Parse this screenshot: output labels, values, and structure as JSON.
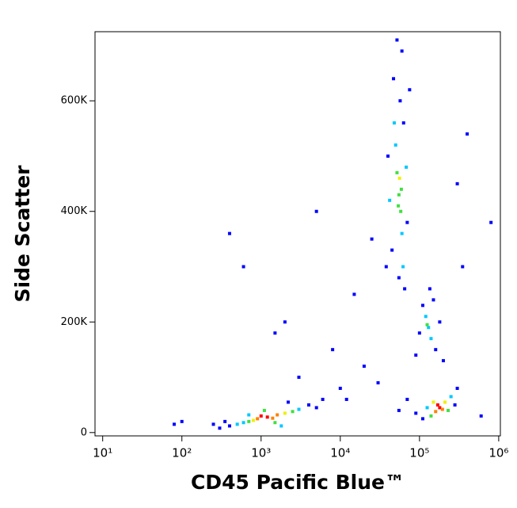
{
  "chart_data": {
    "type": "scatter",
    "xlabel": "CD45 Pacific Blue™",
    "ylabel": "Side Scatter",
    "xscale": "log",
    "xlim": [
      8,
      1050000
    ],
    "ylim": [
      -6000,
      725000
    ],
    "xticks": [
      {
        "value": 10,
        "label": "10¹"
      },
      {
        "value": 100,
        "label": "10²"
      },
      {
        "value": 1000,
        "label": "10³"
      },
      {
        "value": 10000,
        "label": "10⁴"
      },
      {
        "value": 100000,
        "label": "10⁵"
      },
      {
        "value": 1000000,
        "label": "10⁶"
      }
    ],
    "yticks": [
      0,
      {
        "value": 200000,
        "label": "200K"
      },
      {
        "value": 400000,
        "label": "400K"
      },
      {
        "value": 600000,
        "label": "600K"
      }
    ],
    "x": [
      1200,
      1000,
      1400,
      900,
      1600,
      800,
      2000,
      700,
      2500,
      600,
      3000,
      500,
      1100,
      1500,
      400,
      4000,
      350,
      5000,
      300,
      2200,
      1800,
      700,
      6000,
      250,
      55000,
      58000,
      52000,
      60000,
      50000,
      62000,
      48000,
      57000,
      45000,
      65000,
      47000,
      60000,
      68000,
      42000,
      70000,
      40000,
      55000,
      63000,
      38000,
      75000,
      52000,
      56000,
      54000,
      59000,
      130000,
      120000,
      140000,
      110000,
      160000,
      100000,
      150000,
      180000,
      90000,
      125000,
      135000,
      200000,
      180000,
      170000,
      195000,
      160000,
      210000,
      150000,
      230000,
      140000,
      250000,
      125000,
      280000,
      110000,
      300000,
      90000,
      70000,
      55000,
      2000,
      5000,
      8000,
      3000,
      15000,
      20000,
      10000,
      400,
      600,
      1500,
      25000,
      12000,
      100,
      80,
      350000,
      400000,
      300000,
      600000,
      800000,
      30000
    ],
    "values": [
      28000,
      30000,
      26000,
      25000,
      32000,
      22000,
      35000,
      20000,
      38000,
      18000,
      42000,
      15000,
      40000,
      18000,
      12000,
      50000,
      20000,
      45000,
      8000,
      55000,
      12000,
      32000,
      60000,
      15000,
      430000,
      400000,
      470000,
      360000,
      520000,
      300000,
      560000,
      600000,
      330000,
      260000,
      640000,
      690000,
      480000,
      420000,
      380000,
      500000,
      280000,
      560000,
      300000,
      620000,
      710000,
      460000,
      410000,
      440000,
      190000,
      210000,
      170000,
      230000,
      150000,
      180000,
      240000,
      200000,
      140000,
      195000,
      260000,
      130000,
      45000,
      50000,
      42000,
      38000,
      55000,
      55000,
      40000,
      30000,
      65000,
      45000,
      50000,
      25000,
      80000,
      35000,
      60000,
      40000,
      200000,
      400000,
      150000,
      100000,
      250000,
      120000,
      80000,
      360000,
      300000,
      180000,
      350000,
      60000,
      20000,
      15000,
      300000,
      540000,
      450000,
      30000,
      380000,
      90000
    ],
    "colors": [
      "#ff0000",
      "#ff0000",
      "#ff8000",
      "#ff8000",
      "#ff8000",
      "#f0f000",
      "#f0f000",
      "#40e040",
      "#40e040",
      "#00c8ff",
      "#00c8ff",
      "#00c8ff",
      "#40e040",
      "#40e040",
      "#0000ff",
      "#0000ff",
      "#0000ff",
      "#0000ff",
      "#0000ff",
      "#0000ff",
      "#00c8ff",
      "#00c8ff",
      "#0000ff",
      "#0000ff",
      "#40e040",
      "#40e040",
      "#40e040",
      "#00c8ff",
      "#00c8ff",
      "#00c8ff",
      "#00c8ff",
      "#0000ff",
      "#0000ff",
      "#0000ff",
      "#0000ff",
      "#0000ff",
      "#00c8ff",
      "#00c8ff",
      "#0000ff",
      "#0000ff",
      "#0000ff",
      "#0000ff",
      "#0000ff",
      "#0000ff",
      "#0000ff",
      "#f0f000",
      "#40e040",
      "#40e040",
      "#00c8ff",
      "#00c8ff",
      "#00c8ff",
      "#0000ff",
      "#0000ff",
      "#0000ff",
      "#0000ff",
      "#0000ff",
      "#0000ff",
      "#40e040",
      "#0000ff",
      "#0000ff",
      "#ff0000",
      "#ff0000",
      "#ff8000",
      "#ff8000",
      "#f0f000",
      "#f0f000",
      "#40e040",
      "#40e040",
      "#00c8ff",
      "#00c8ff",
      "#0000ff",
      "#0000ff",
      "#0000ff",
      "#0000ff",
      "#0000ff",
      "#0000ff",
      "#0000ff",
      "#0000ff",
      "#0000ff",
      "#0000ff",
      "#0000ff",
      "#0000ff",
      "#0000ff",
      "#0000ff",
      "#0000ff",
      "#0000ff",
      "#0000ff",
      "#0000ff",
      "#0000ff",
      "#0000ff",
      "#0000ff",
      "#0000ff",
      "#0000ff",
      "#0000ff",
      "#0000ff",
      "#0000ff"
    ]
  }
}
